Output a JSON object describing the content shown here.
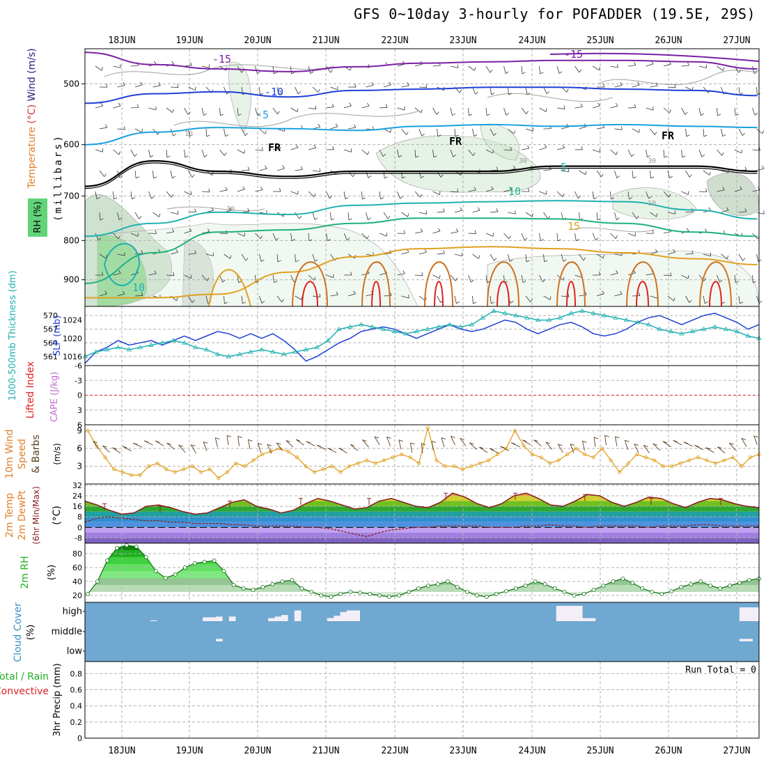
{
  "title": "GFS 0~10day 3-hourly for POFADDER (19.5E, 29S)",
  "dates": [
    "18JUN",
    "19JUN",
    "20JUN",
    "21JUN",
    "22JUN",
    "23JUN",
    "24JUN",
    "25JUN",
    "26JUN",
    "27JUN"
  ],
  "colors": {
    "grid": "#b0b0b0",
    "frame": "#000000",
    "temp_cold": "#7a1fa2",
    "temp_blue": "#1f3fd6",
    "temp_cyan": "#1aa0e0",
    "temp_teal": "#20b0b0",
    "temp_green": "#20b080",
    "temp_orange": "#e0a020",
    "temp_dark_orange": "#d07020",
    "temp_red": "#e02020",
    "rh_fill": "#cfe7cf",
    "slp": "#1f3fd6",
    "thickness": "#20b0b0",
    "wind_speed": "#e0a020",
    "barb": "#5a3a1a",
    "cloud_bg": "#6fa8d0",
    "cloud_fill": "#f4eef7"
  },
  "chart_data": [
    {
      "type": "line",
      "panel": "upper-air cross-section",
      "ylabel_parts": [
        "Temperature",
        "(°C)",
        "Wind",
        "(m/s)"
      ],
      "ylabel_inner": "(millibars)",
      "rh_label": "RH (%)",
      "y_ticks": [
        500,
        600,
        700,
        800,
        900
      ],
      "ylim": [
        450,
        975
      ],
      "y_scale": "log",
      "x": [
        "17JUN12",
        "18JUN12",
        "19JUN12",
        "20JUN12",
        "21JUN12",
        "22JUN12",
        "23JUN12",
        "24JUN12",
        "25JUN12",
        "26JUN12",
        "27JUN06"
      ],
      "series": [
        {
          "name": "-15",
          "color": "#7a1fa2",
          "values": [
            455,
            472,
            478,
            482,
            475,
            470,
            468,
            466,
            466,
            468,
            478
          ]
        },
        {
          "name": "-10",
          "color": "#1f3fd6",
          "values": [
            530,
            515,
            512,
            520,
            510,
            508,
            505,
            505,
            508,
            510,
            518
          ]
        },
        {
          "name": "-5",
          "color": "#1aa0e0",
          "values": [
            600,
            578,
            570,
            572,
            575,
            568,
            565,
            568,
            565,
            568,
            570
          ]
        },
        {
          "name": "FR",
          "color": "#000000",
          "values": [
            680,
            630,
            650,
            660,
            650,
            650,
            650,
            640,
            640,
            640,
            650
          ]
        },
        {
          "name": "5",
          "color": "#20b0b0",
          "values": [
            790,
            760,
            735,
            740,
            720,
            715,
            712,
            710,
            712,
            730,
            750
          ]
        },
        {
          "name": "10",
          "color": "#20b080",
          "values": [
            910,
            830,
            780,
            775,
            760,
            748,
            748,
            750,
            760,
            780,
            790
          ]
        },
        {
          "name": "15",
          "color": "#e0a020",
          "values": [
            950,
            950,
            940,
            880,
            840,
            820,
            815,
            820,
            830,
            845,
            860
          ]
        }
      ],
      "contour_labels": [
        "-15",
        "-10",
        "-5",
        "FR",
        "FR",
        "FR",
        "5",
        "10",
        "15",
        "10",
        "30",
        "30",
        "10",
        "30",
        "10",
        "-15"
      ]
    },
    {
      "type": "line",
      "panel": "thickness / slp",
      "ylabel_left": "1000-500mb Thickness (dm)",
      "ylabel_right": "SLP (mb)",
      "y_ticks_left": [
        561,
        564,
        567,
        570
      ],
      "y_ticks_right": [
        1016,
        1020,
        1024
      ],
      "ylim_left": [
        559,
        572
      ],
      "ylim_right": [
        1014,
        1027
      ],
      "series": [
        {
          "name": "SLP",
          "color": "#1f3fd6",
          "values": [
            1014.5,
            1017,
            1018,
            1019.5,
            1018.5,
            1019,
            1019.5,
            1018.5,
            1019.5,
            1020.5,
            1019.5,
            1020.5,
            1021.5,
            1021,
            1020,
            1021,
            1020,
            1021,
            1019.5,
            1017.5,
            1015,
            1016,
            1017.5,
            1019,
            1020,
            1021.5,
            1022,
            1022.5,
            1022,
            1021,
            1020,
            1021,
            1022,
            1023,
            1022,
            1021.5,
            1022,
            1023,
            1024,
            1023.5,
            1022,
            1021,
            1022,
            1023,
            1023.5,
            1022.5,
            1021,
            1020.5,
            1021,
            1022,
            1023.5,
            1024.5,
            1025,
            1024,
            1023,
            1024,
            1025,
            1025.5,
            1024.5,
            1023.5,
            1022,
            1023
          ]
        },
        {
          "name": "Thickness",
          "color": "#20b0b0",
          "values": [
            561,
            562,
            562.5,
            563,
            562.5,
            563,
            563.5,
            564,
            564.5,
            564,
            563,
            562.5,
            561.5,
            561,
            561.5,
            562,
            562.5,
            562,
            561.5,
            562,
            562.5,
            563,
            564.5,
            567,
            567.5,
            568,
            567.5,
            567,
            566.5,
            566,
            566.5,
            567,
            567.5,
            568,
            567.5,
            568,
            569.5,
            571,
            570.5,
            570,
            569.5,
            569,
            569,
            569.5,
            570.5,
            571,
            570.5,
            570,
            569.5,
            569,
            568.5,
            568,
            567,
            566.5,
            566,
            566.5,
            567,
            567.5,
            567,
            566.5,
            565.5,
            565
          ]
        }
      ]
    },
    {
      "type": "line",
      "panel": "instability",
      "ylabel_left": "Lifted Index",
      "ylabel_right": "CAPE (J/kg)",
      "y_ticks": [
        "-6",
        "-3",
        "0",
        "3",
        "6"
      ],
      "ylim": [
        -6,
        6
      ],
      "values": []
    },
    {
      "type": "line",
      "panel": "10m wind",
      "ylabel_parts": [
        "10m Wind",
        "Speed",
        "& Barbs",
        "(m/s)"
      ],
      "y_ticks": [
        3,
        6,
        9
      ],
      "ylim": [
        0,
        10
      ],
      "series": [
        {
          "name": "Speed",
          "color": "#e0a020",
          "values": [
            9,
            6.5,
            4.5,
            2.5,
            2,
            1.5,
            1.5,
            3,
            3.5,
            2.5,
            2,
            2.5,
            3,
            2,
            2.5,
            1,
            2,
            3.5,
            3,
            4,
            5,
            5.5,
            6,
            5.5,
            4.5,
            3,
            2,
            2.5,
            3,
            2,
            3,
            3.5,
            4,
            3.5,
            4,
            4.5,
            5,
            4.5,
            3.5,
            9.5,
            4,
            3,
            3,
            2.5,
            3,
            3.5,
            4,
            5,
            6,
            9,
            6.5,
            5,
            4.5,
            3.5,
            4,
            5,
            6,
            5,
            4.5,
            6,
            4,
            2,
            3.5,
            5,
            4.5,
            4,
            3,
            3,
            3.5,
            4,
            4.5,
            4,
            3.5,
            4,
            4.5,
            3,
            4.5,
            5
          ]
        }
      ]
    },
    {
      "type": "area",
      "panel": "2m temperature",
      "ylabel_parts": [
        "2m Temp",
        "2m DewPt",
        "(6hr Min/Max)",
        "(°C)"
      ],
      "y_ticks": [
        "-8",
        "0",
        "8",
        "16",
        "24",
        "32"
      ],
      "ylim": [
        -12,
        33
      ],
      "series": [
        {
          "name": "Temp",
          "color": "#8b2020",
          "values": [
            20,
            17,
            13,
            10,
            11,
            16,
            17,
            15,
            12,
            10,
            11,
            15,
            19,
            21,
            16,
            14,
            11,
            13,
            18,
            22,
            20,
            17,
            14,
            15,
            20,
            22,
            19,
            16,
            15,
            19,
            26,
            23,
            18,
            15,
            18,
            24,
            26,
            22,
            17,
            16,
            20,
            25,
            24,
            19,
            16,
            19,
            23,
            22,
            18,
            15,
            19,
            22,
            21,
            18,
            16,
            15
          ]
        },
        {
          "name": "DewPt",
          "color": "#8b2020",
          "values": [
            4,
            7,
            8,
            7,
            6,
            5,
            5,
            4,
            4,
            3,
            3,
            3,
            2,
            2,
            1,
            1,
            1,
            1,
            0,
            0,
            -1,
            -3,
            -5,
            -7,
            -4,
            -2,
            -1,
            0,
            0,
            1,
            1,
            1,
            1,
            0,
            0,
            0,
            1,
            1,
            2,
            1,
            1,
            0,
            1,
            1,
            1,
            1,
            0,
            1,
            1,
            1,
            2,
            2,
            1,
            1,
            1,
            1
          ]
        }
      ]
    },
    {
      "type": "area",
      "panel": "2m relative humidity",
      "ylabel_parts": [
        "2m RH",
        "(%)"
      ],
      "y_ticks": [
        20,
        40,
        60,
        80
      ],
      "ylim": [
        10,
        95
      ],
      "values": [
        22,
        40,
        70,
        88,
        92,
        90,
        75,
        55,
        45,
        50,
        60,
        66,
        68,
        70,
        55,
        35,
        30,
        28,
        32,
        36,
        40,
        42,
        30,
        25,
        20,
        18,
        22,
        25,
        24,
        22,
        20,
        18,
        20,
        25,
        30,
        34,
        36,
        40,
        32,
        25,
        20,
        18,
        22,
        26,
        30,
        34,
        40,
        36,
        30,
        25,
        20,
        22,
        28,
        34,
        40,
        44,
        38,
        30,
        25,
        22,
        26,
        32,
        36,
        40,
        34,
        30,
        34,
        38,
        42,
        44
      ]
    },
    {
      "type": "bar",
      "panel": "cloud cover",
      "ylabel_parts": [
        "Cloud Cover",
        "(%)"
      ],
      "y_ticks": [
        "high",
        "middle",
        "low"
      ],
      "high_cloud_values": [
        0,
        0,
        0,
        0,
        0,
        0,
        0,
        0,
        0,
        0,
        5,
        0,
        0,
        0,
        0,
        0,
        0,
        0,
        25,
        25,
        30,
        0,
        30,
        0,
        0,
        0,
        0,
        0,
        20,
        30,
        40,
        0,
        70,
        0,
        0,
        0,
        0,
        20,
        35,
        60,
        70,
        70,
        0,
        0,
        0,
        0,
        0,
        0,
        0,
        0,
        0,
        0,
        0,
        0,
        0,
        0,
        0,
        0,
        0,
        0,
        0,
        0,
        0,
        0,
        0,
        0,
        0,
        0,
        0,
        0,
        0,
        0,
        100,
        100,
        100,
        100,
        20,
        20,
        0,
        0,
        0,
        0,
        0,
        0,
        0,
        0,
        0,
        0,
        0,
        0,
        0,
        0,
        0,
        0,
        0,
        0,
        0,
        0,
        0,
        0,
        90,
        90,
        90
      ],
      "low_cloud_values": [
        0,
        0,
        0,
        0,
        0,
        0,
        0,
        0,
        0,
        0,
        0,
        0,
        0,
        0,
        0,
        0,
        0,
        0,
        0,
        0,
        20,
        0,
        0,
        0,
        0,
        0,
        0,
        0,
        0,
        0,
        0,
        0,
        0,
        0,
        0,
        0,
        0,
        0,
        0,
        0,
        0,
        0,
        0,
        0,
        0,
        0,
        0,
        0,
        0,
        0,
        0,
        0,
        0,
        0,
        0,
        0,
        0,
        0,
        0,
        0,
        0,
        0,
        0,
        0,
        0,
        0,
        0,
        0,
        0,
        0,
        0,
        0,
        0,
        0,
        0,
        0,
        0,
        0,
        0,
        0,
        0,
        0,
        0,
        0,
        0,
        0,
        0,
        0,
        0,
        0,
        0,
        0,
        0,
        0,
        0,
        0,
        0,
        0,
        0,
        0,
        20,
        20,
        0
      ]
    },
    {
      "type": "bar",
      "panel": "precipitation",
      "ylabel_parts": [
        "Total / Rain",
        "Convective",
        "3hr Precip (mm)"
      ],
      "y_ticks": [
        "0",
        "0.2",
        "0.4",
        "0.6",
        "0.8"
      ],
      "ylim": [
        0,
        0.95
      ],
      "run_total": "Run Total = 0",
      "values": []
    }
  ]
}
